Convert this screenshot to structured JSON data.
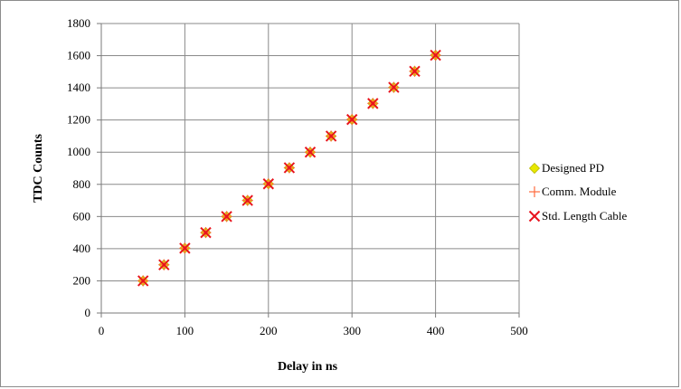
{
  "chart_data": {
    "type": "scatter",
    "title": "",
    "xlabel": "Delay in ns",
    "ylabel": "TDC Counts",
    "xlim": [
      0,
      500
    ],
    "ylim": [
      0,
      1800
    ],
    "x_ticks": [
      0,
      100,
      200,
      300,
      400,
      500
    ],
    "y_ticks": [
      0,
      200,
      400,
      600,
      800,
      1000,
      1200,
      1400,
      1600,
      1800
    ],
    "grid": true,
    "legend_position": "right",
    "x": [
      50,
      75,
      100,
      125,
      150,
      175,
      200,
      225,
      250,
      275,
      300,
      325,
      350,
      375,
      400
    ],
    "series": [
      {
        "name": "Designed PD",
        "marker": "diamond",
        "color": "#e8e800",
        "stroke": "#b8b800",
        "values": [
          200,
          300,
          403,
          500,
          600,
          700,
          803,
          903,
          1000,
          1100,
          1203,
          1303,
          1403,
          1503,
          1603
        ]
      },
      {
        "name": "Comm. Module",
        "marker": "plus",
        "color": "#ff6a3d",
        "values": [
          200,
          300,
          403,
          500,
          600,
          700,
          803,
          903,
          1000,
          1100,
          1203,
          1303,
          1403,
          1503,
          1603
        ]
      },
      {
        "name": "Std. Length Cable",
        "marker": "x",
        "color": "#e8141e",
        "values": [
          200,
          300,
          403,
          500,
          600,
          700,
          803,
          903,
          1000,
          1100,
          1203,
          1303,
          1403,
          1503,
          1603
        ]
      }
    ]
  }
}
